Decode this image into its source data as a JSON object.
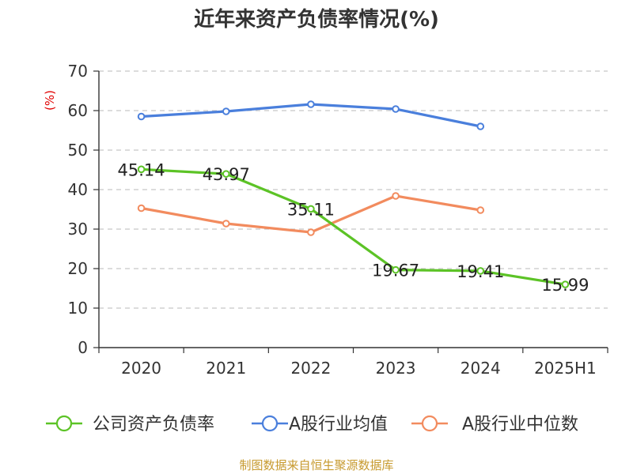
{
  "chart_data": {
    "type": "line",
    "title": "近年来资产负债率情况(%)",
    "ylabel": "(%)",
    "xlabel": "",
    "categories": [
      "2020",
      "2021",
      "2022",
      "2023",
      "2024",
      "2025H1"
    ],
    "ylim": [
      0,
      70
    ],
    "yticks": [
      0,
      10,
      20,
      30,
      40,
      50,
      60,
      70
    ],
    "grid": true,
    "legend_position": "bottom",
    "series": [
      {
        "name": "公司资产负债率",
        "color": "#5cc326",
        "values": [
          45.14,
          43.97,
          35.11,
          19.67,
          19.41,
          15.99
        ],
        "labels": [
          "45.14",
          "43.97",
          "35.11",
          "19.67",
          "19.41",
          "15.99"
        ]
      },
      {
        "name": "A股行业均值",
        "color": "#4a7fdc",
        "values": [
          58.5,
          59.8,
          61.6,
          60.4,
          56.0,
          null
        ]
      },
      {
        "name": "A股行业中位数",
        "color": "#f28b5e",
        "values": [
          35.3,
          31.4,
          29.2,
          38.4,
          34.8,
          null
        ]
      }
    ]
  },
  "source_note": "制图数据来自恒生聚源数据库"
}
